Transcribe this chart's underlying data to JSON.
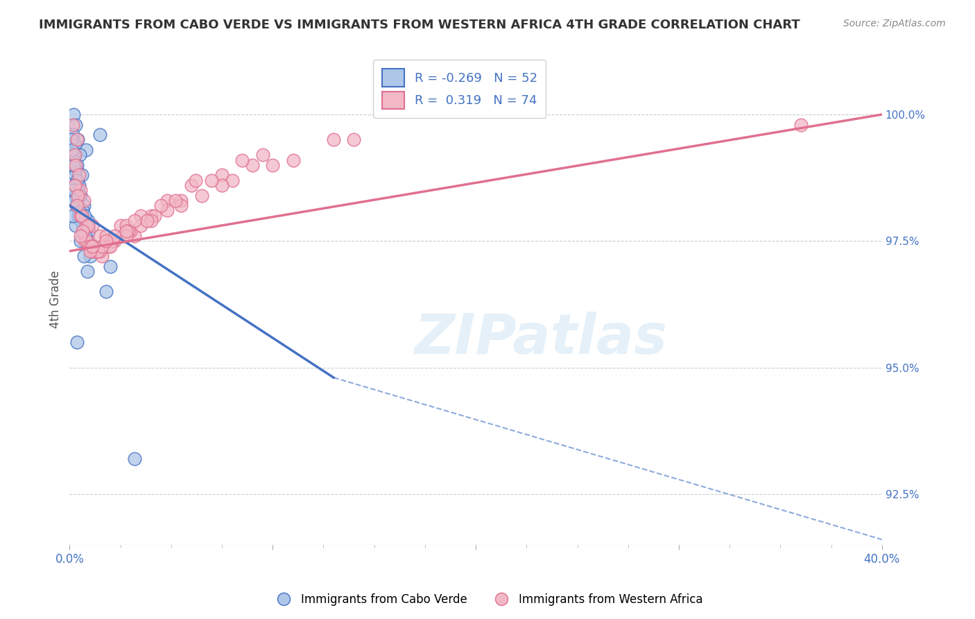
{
  "title": "IMMIGRANTS FROM CABO VERDE VS IMMIGRANTS FROM WESTERN AFRICA 4TH GRADE CORRELATION CHART",
  "source": "Source: ZipAtlas.com",
  "ylabel": "4th Grade",
  "right_yticks": [
    100.0,
    97.5,
    95.0,
    92.5
  ],
  "right_ytick_labels": [
    "100.0%",
    "97.5%",
    "95.0%",
    "92.5%"
  ],
  "xlim": [
    0.0,
    40.0
  ],
  "ylim": [
    91.5,
    101.2
  ],
  "blue_R": -0.269,
  "blue_N": 52,
  "pink_R": 0.319,
  "pink_N": 74,
  "blue_color": "#aec6e8",
  "pink_color": "#f2b8c6",
  "blue_line_color": "#4472c4",
  "pink_line_color": "#e07090",
  "legend_blue_label": "Immigrants from Cabo Verde",
  "legend_pink_label": "Immigrants from Western Africa",
  "watermark": "ZIPatlas",
  "blue_scatter_x": [
    0.2,
    0.3,
    1.5,
    0.4,
    0.8,
    0.15,
    0.25,
    0.5,
    0.35,
    0.6,
    0.1,
    0.2,
    0.3,
    0.45,
    0.55,
    0.15,
    0.25,
    0.4,
    0.7,
    0.9,
    0.12,
    0.18,
    0.35,
    0.5,
    0.65,
    0.22,
    0.38,
    0.75,
    0.95,
    1.2,
    0.28,
    0.48,
    0.68,
    0.85,
    2.0,
    0.18,
    0.32,
    0.55,
    0.78,
    1.1,
    0.22,
    0.42,
    0.62,
    1.0,
    0.3,
    0.52,
    0.72,
    0.88,
    1.8,
    0.16,
    0.38,
    3.2
  ],
  "blue_scatter_y": [
    100.0,
    99.8,
    99.6,
    99.5,
    99.3,
    99.6,
    99.4,
    99.2,
    99.0,
    98.8,
    99.5,
    99.2,
    98.9,
    98.6,
    98.4,
    99.1,
    98.8,
    98.5,
    98.2,
    97.9,
    99.3,
    99.0,
    98.7,
    98.4,
    98.1,
    98.6,
    98.3,
    98.0,
    97.7,
    97.4,
    98.4,
    98.1,
    97.8,
    97.5,
    97.0,
    98.5,
    98.2,
    97.9,
    97.6,
    97.3,
    98.3,
    98.0,
    97.7,
    97.2,
    97.8,
    97.5,
    97.2,
    96.9,
    96.5,
    98.0,
    95.5,
    93.2
  ],
  "pink_scatter_x": [
    0.15,
    0.35,
    0.55,
    0.75,
    1.1,
    1.5,
    2.0,
    2.5,
    3.2,
    4.0,
    0.25,
    0.55,
    0.85,
    1.2,
    1.8,
    2.8,
    3.5,
    4.8,
    6.0,
    7.5,
    0.3,
    0.7,
    1.1,
    1.6,
    2.2,
    3.0,
    4.2,
    5.5,
    8.0,
    9.0,
    0.45,
    0.8,
    1.3,
    1.9,
    2.6,
    3.5,
    4.8,
    6.5,
    10.0,
    14.0,
    0.25,
    0.6,
    1.0,
    1.5,
    2.1,
    2.9,
    4.0,
    5.5,
    7.5,
    11.0,
    0.4,
    0.9,
    1.4,
    2.0,
    2.8,
    3.8,
    5.2,
    7.0,
    9.5,
    13.0,
    0.35,
    0.65,
    1.0,
    1.6,
    2.2,
    3.2,
    4.5,
    6.2,
    8.5,
    36.0,
    0.55,
    1.1,
    1.8,
    2.8
  ],
  "pink_scatter_y": [
    99.8,
    99.5,
    98.0,
    97.5,
    97.8,
    97.6,
    97.5,
    97.8,
    97.6,
    98.0,
    99.2,
    98.5,
    97.5,
    97.3,
    97.6,
    97.8,
    98.0,
    98.3,
    98.6,
    98.8,
    99.0,
    98.3,
    97.4,
    97.2,
    97.5,
    97.7,
    98.0,
    98.3,
    98.7,
    99.0,
    98.8,
    97.8,
    97.3,
    97.4,
    97.6,
    97.8,
    98.1,
    98.4,
    99.0,
    99.5,
    98.6,
    98.0,
    97.4,
    97.3,
    97.5,
    97.7,
    97.9,
    98.2,
    98.6,
    99.1,
    98.4,
    97.8,
    97.3,
    97.4,
    97.6,
    97.9,
    98.3,
    98.7,
    99.2,
    99.5,
    98.2,
    97.7,
    97.3,
    97.4,
    97.6,
    97.9,
    98.2,
    98.7,
    99.1,
    99.8,
    97.6,
    97.4,
    97.5,
    97.7
  ],
  "blue_line_x0": 0.0,
  "blue_line_y0": 98.2,
  "blue_line_x1": 13.0,
  "blue_line_y1": 94.8,
  "blue_dash_x0": 13.0,
  "blue_dash_y0": 94.8,
  "blue_dash_x1": 40.0,
  "blue_dash_y1": 91.6,
  "pink_line_x0": 0.0,
  "pink_line_y0": 97.3,
  "pink_line_x1": 40.0,
  "pink_line_y1": 100.0
}
